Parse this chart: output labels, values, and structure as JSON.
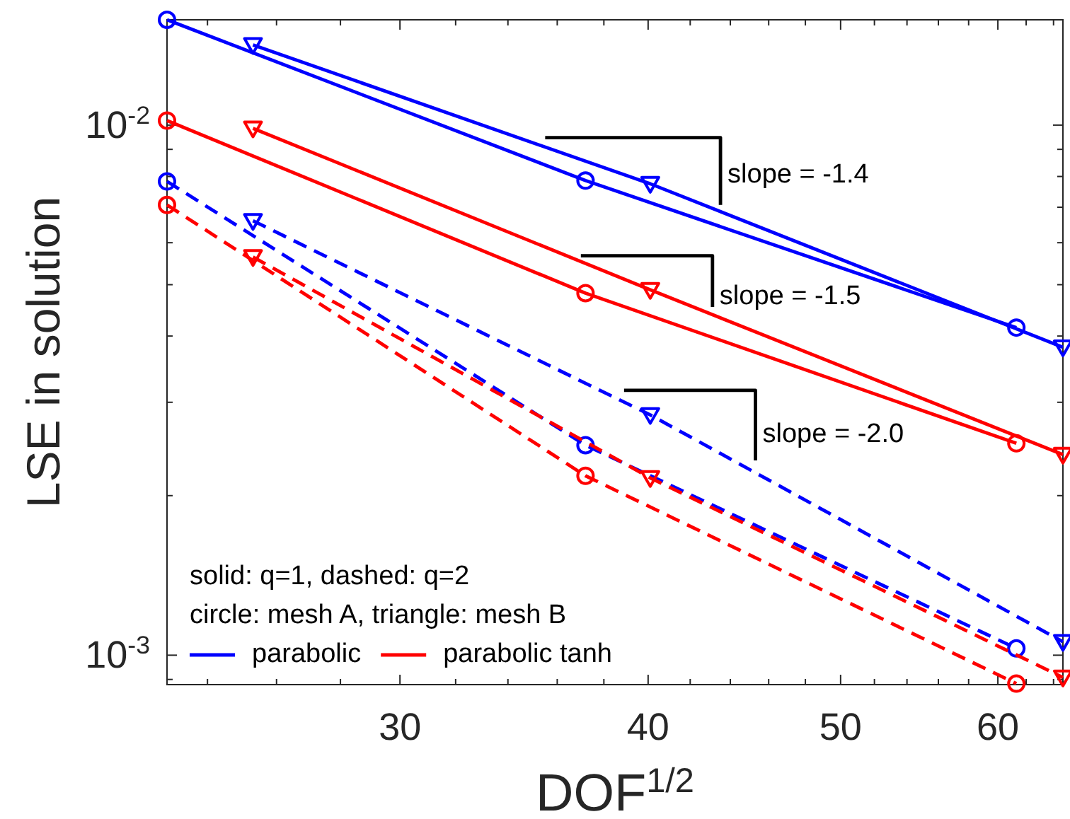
{
  "chart_data": {
    "type": "line",
    "xlabel": "DOF$^{1/2}$",
    "ylabel": "LSE in solution",
    "log": "xy",
    "xlim": [
      22.9,
      64.7
    ],
    "ylim": [
      0.00088,
      0.0158
    ],
    "xticks": [
      {
        "value": 24,
        "label": null
      },
      {
        "value": 26,
        "label": null
      },
      {
        "value": 28,
        "label": null
      },
      30,
      {
        "value": 32,
        "label": null
      },
      {
        "value": 34,
        "label": null
      },
      {
        "value": 36,
        "label": null
      },
      {
        "value": 38,
        "label": null
      },
      40,
      {
        "value": 42,
        "label": null
      },
      {
        "value": 44,
        "label": null
      },
      {
        "value": 46,
        "label": null
      },
      {
        "value": 48,
        "label": null
      },
      50,
      {
        "value": 52,
        "label": null
      },
      {
        "value": 54,
        "label": null
      },
      {
        "value": 56,
        "label": null
      },
      {
        "value": 58,
        "label": null
      },
      60,
      {
        "value": 62,
        "label": null
      },
      {
        "value": 64,
        "label": null
      }
    ],
    "yticks": [
      {
        "value": 0.0009,
        "label": null
      },
      {
        "value": 0.001,
        "label": "10$^{-3}$"
      },
      {
        "value": 0.002,
        "label": null
      },
      {
        "value": 0.003,
        "label": null
      },
      {
        "value": 0.004,
        "label": null
      },
      {
        "value": 0.005,
        "label": null
      },
      {
        "value": 0.006,
        "label": null
      },
      {
        "value": 0.007,
        "label": null
      },
      {
        "value": 0.008,
        "label": null
      },
      {
        "value": 0.009,
        "label": null
      },
      {
        "value": 0.01,
        "label": "10$^{-2}$"
      }
    ],
    "legend": "bottom left",
    "annotations": [
      "solid: q=1, dashed: q=2",
      "circle: mesh A, triangle: mesh B",
      {
        "text": "slope = -1.4",
        "x": 43.5,
        "y": 0.00804
      },
      {
        "text": "slope = -1.5",
        "x": 43.1,
        "y": 0.00474
      },
      {
        "text": "slope = -2.0",
        "x": 45.3,
        "y": 0.0026
      }
    ],
    "series": [
      {
        "name": "parabolic",
        "color": "#0000ff",
        "marker": "circle",
        "line_style": "solid",
        "x": [
          22.9,
          37.2,
          61.3
        ],
        "values": [
          0.0158,
          0.00786,
          0.00415
        ]
      },
      {
        "color": "#0000ff",
        "marker": "triangle",
        "line_style": "solid",
        "x": [
          25.3,
          40.1,
          64.7
        ],
        "values": [
          0.01417,
          0.00775,
          0.00381
        ]
      },
      {
        "name": "parabolic tanh",
        "color": "#ff0000",
        "marker": "circle",
        "line_style": "solid",
        "x": [
          22.9,
          37.2,
          61.3
        ],
        "values": [
          0.0102,
          0.00482,
          0.00251
        ]
      },
      {
        "color": "#ff0000",
        "marker": "triangle",
        "line_style": "solid",
        "x": [
          25.3,
          40.1,
          64.7
        ],
        "values": [
          0.00986,
          0.00489,
          0.00239
        ]
      },
      {
        "color": "#0000ff",
        "marker": "circle",
        "line_style": "dashed",
        "x": [
          22.9,
          37.2,
          61.3
        ],
        "values": [
          0.00783,
          0.00249,
          0.00103
        ]
      },
      {
        "color": "#0000ff",
        "marker": "triangle",
        "line_style": "dashed",
        "x": [
          25.3,
          40.1,
          64.7
        ],
        "values": [
          0.0066,
          0.00284,
          0.00106
        ]
      },
      {
        "color": "#ff0000",
        "marker": "circle",
        "line_style": "dashed",
        "x": [
          22.9,
          37.2,
          61.3
        ],
        "values": [
          0.00707,
          0.00218,
          0.000884
        ]
      },
      {
        "color": "#ff0000",
        "marker": "triangle",
        "line_style": "dashed",
        "x": [
          25.3,
          40.1,
          64.7
        ],
        "values": [
          0.00564,
          0.00216,
          0.000908
        ]
      },
      {
        "color": "#000000",
        "marker": "none",
        "line_style": "solid",
        "x": [
          35.5,
          43.5,
          43.5
        ],
        "values": [
          0.00947,
          0.00947,
          0.00707
        ]
      },
      {
        "color": "#000000",
        "marker": "none",
        "line_style": "solid",
        "x": [
          37.0,
          43.1,
          43.1
        ],
        "values": [
          0.00567,
          0.00567,
          0.00454
        ]
      },
      {
        "color": "#000000",
        "marker": "none",
        "line_style": "solid",
        "x": [
          38.9,
          45.3,
          45.3
        ],
        "values": [
          0.00316,
          0.00316,
          0.00233
        ]
      }
    ]
  }
}
